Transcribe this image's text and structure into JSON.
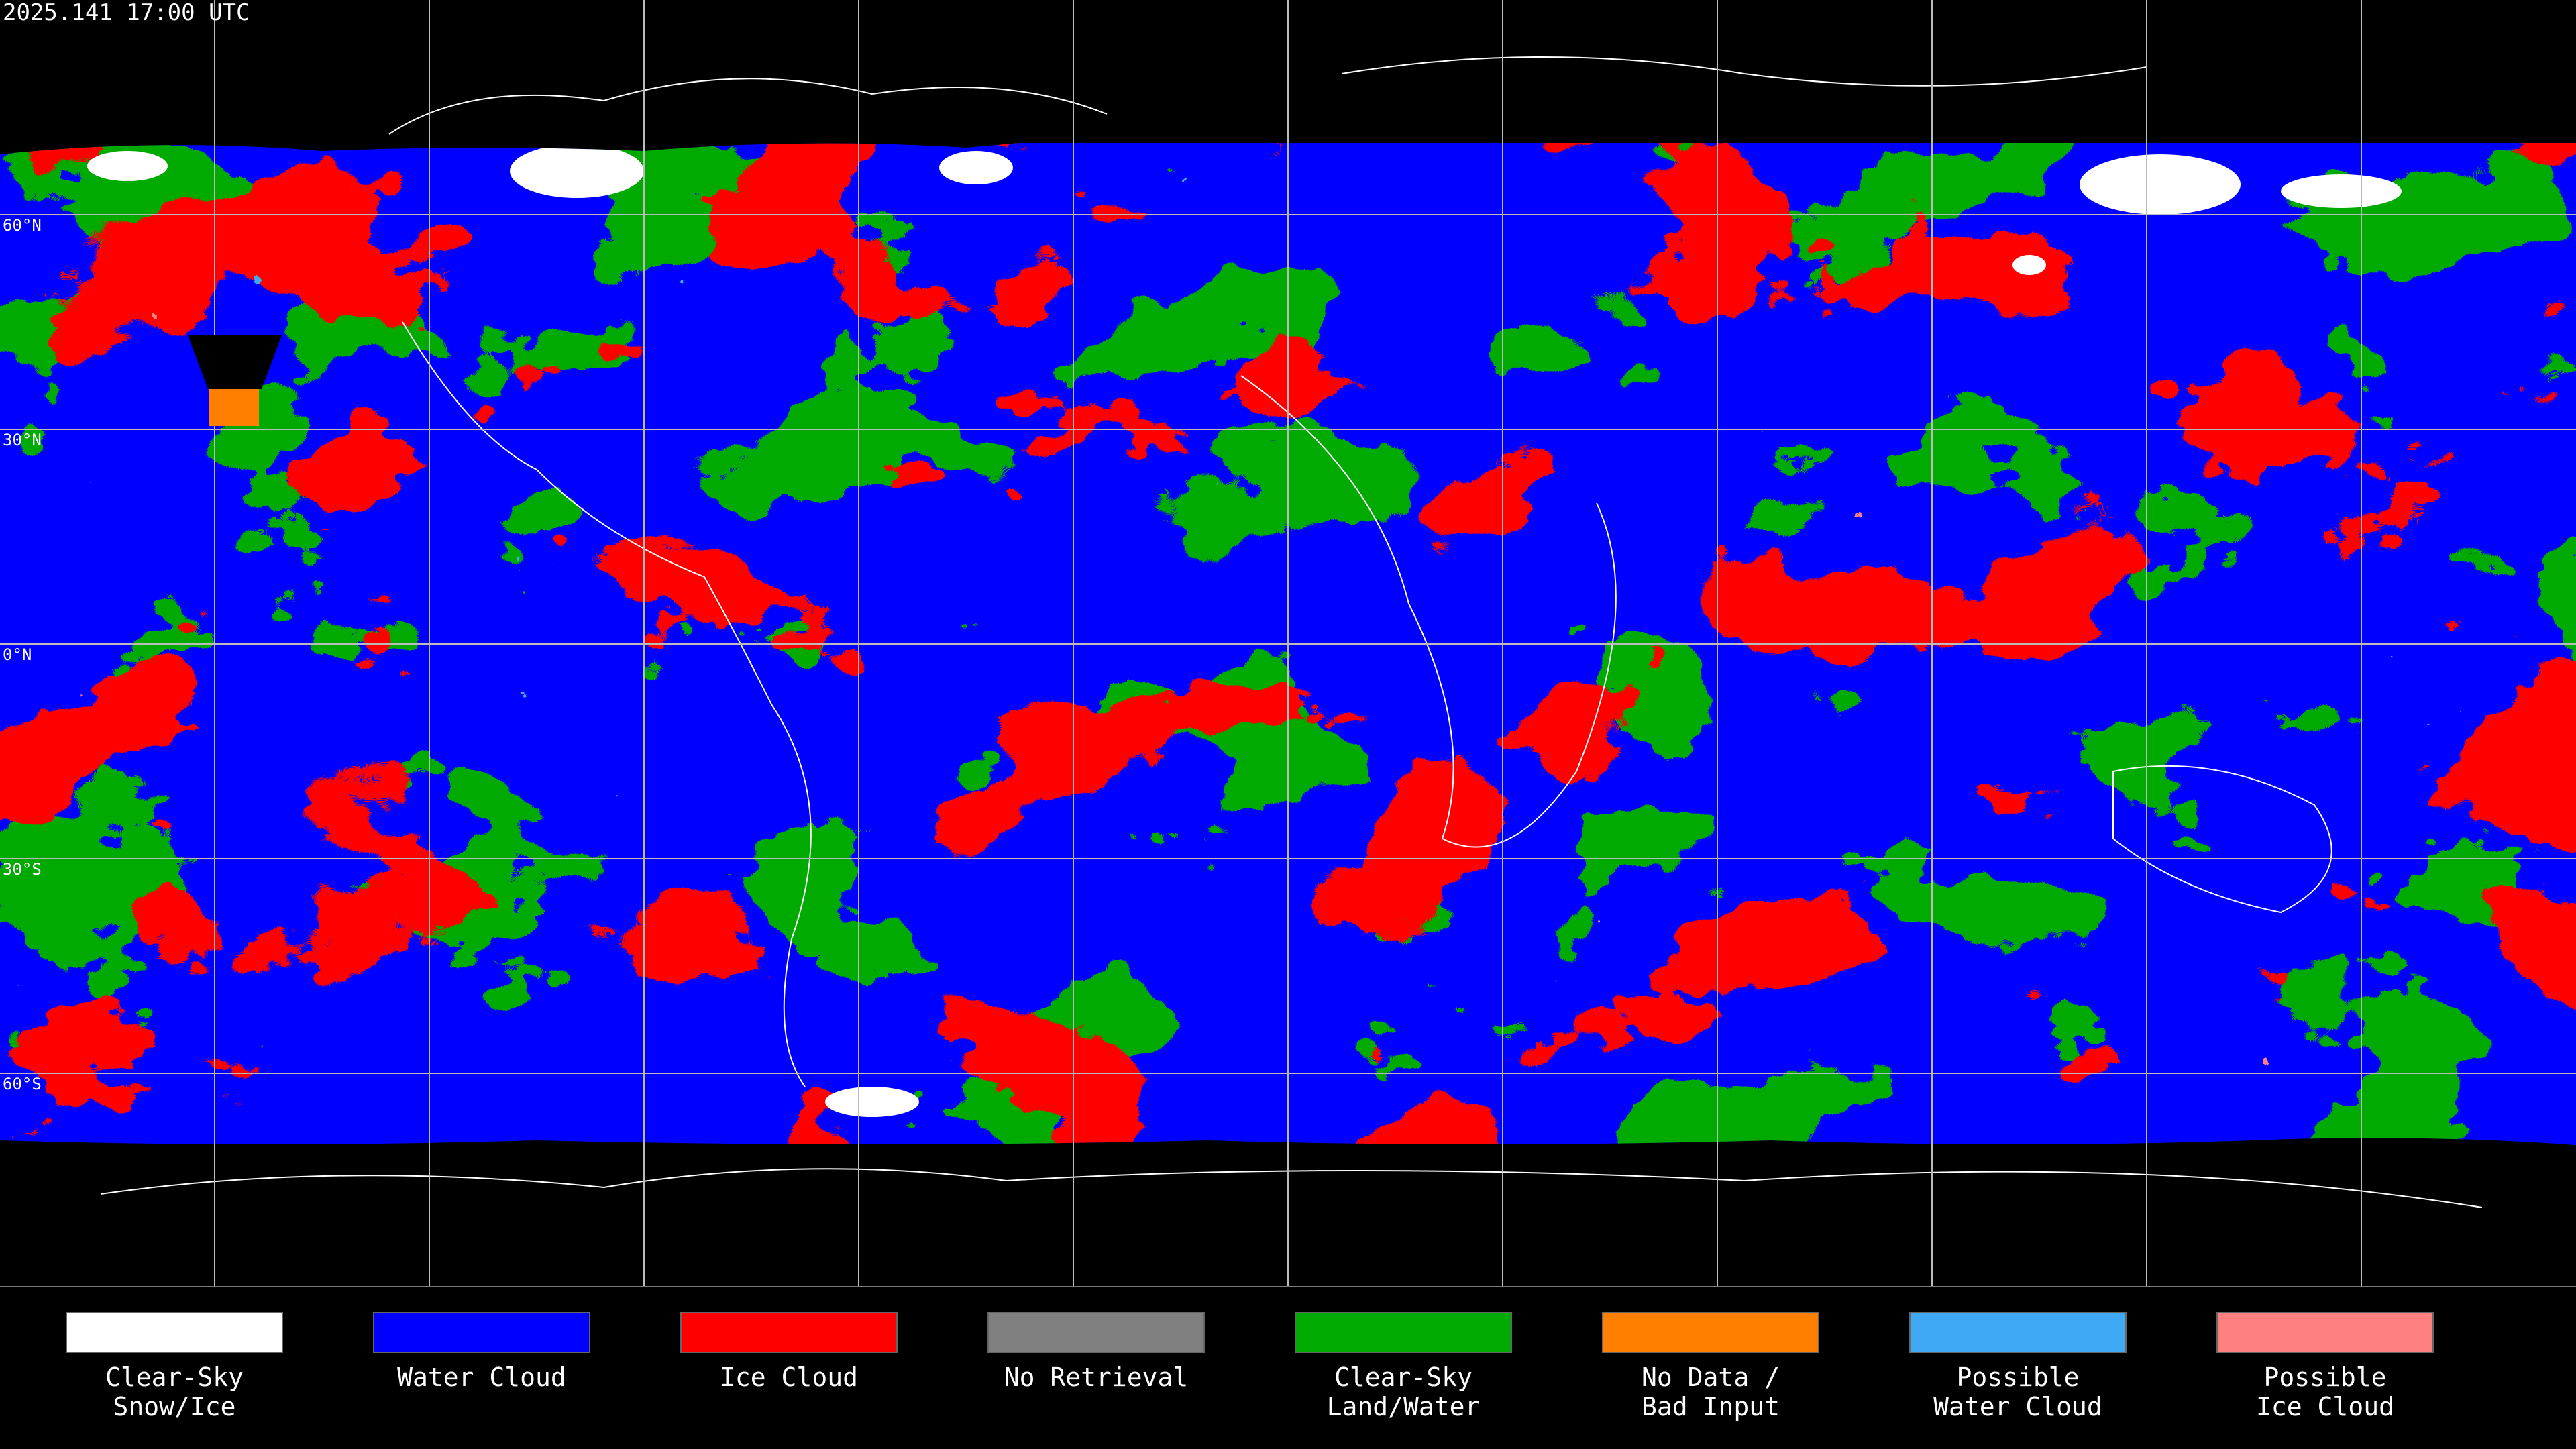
{
  "header": {
    "timestamp": "2025.141 17:00 UTC"
  },
  "map": {
    "latitude_labels": [
      "60°N",
      "30°N",
      "0°N",
      "30°S",
      "60°S"
    ]
  },
  "legend": {
    "items": [
      {
        "lines": [
          "Clear-Sky",
          "Snow/Ice"
        ],
        "color": "#ffffff"
      },
      {
        "lines": [
          "Water Cloud"
        ],
        "color": "#0000ff"
      },
      {
        "lines": [
          "Ice Cloud"
        ],
        "color": "#ff0000"
      },
      {
        "lines": [
          "No Retrieval"
        ],
        "color": "#808080"
      },
      {
        "lines": [
          "Clear-Sky",
          "Land/Water"
        ],
        "color": "#00aa00"
      },
      {
        "lines": [
          "No Data /",
          "Bad Input"
        ],
        "color": "#ff8000"
      },
      {
        "lines": [
          "Possible",
          "Water Cloud"
        ],
        "color": "#3fa9f5"
      },
      {
        "lines": [
          "Possible",
          "Ice Cloud"
        ],
        "color": "#ff8080"
      }
    ]
  }
}
